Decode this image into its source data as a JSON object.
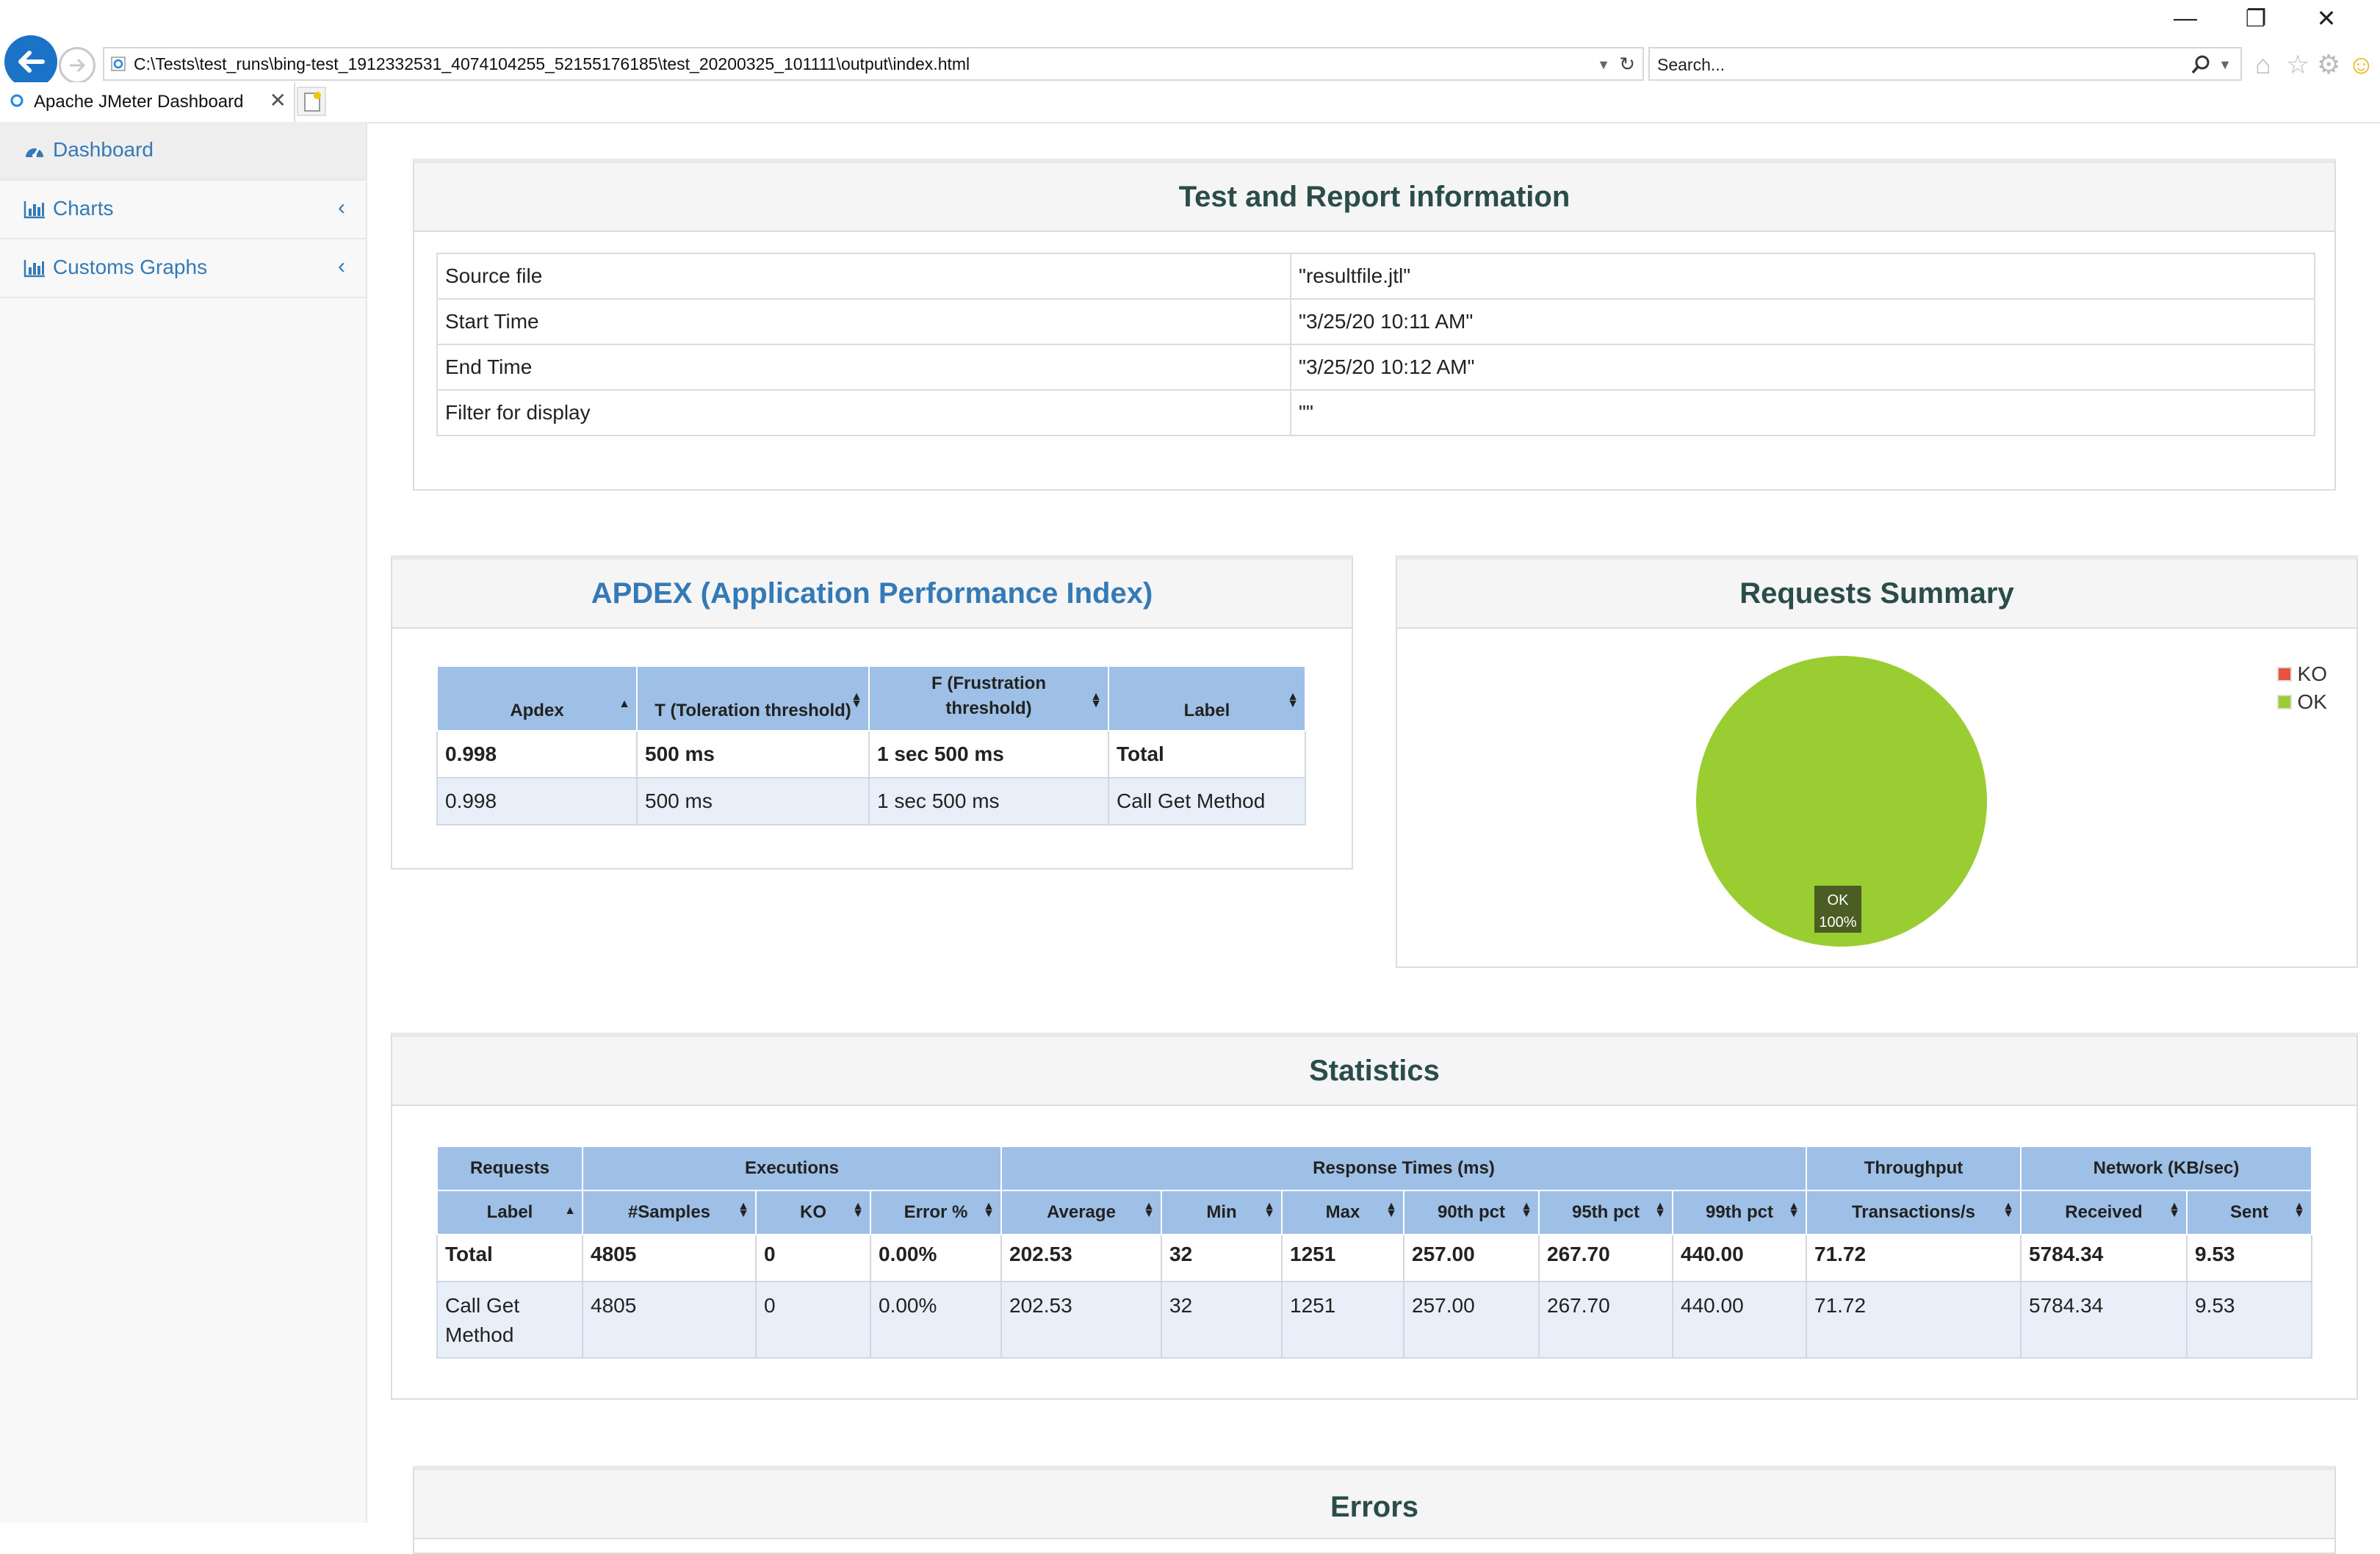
{
  "browser": {
    "url": "C:\\Tests\\test_runs\\bing-test_1912332531_4074104255_52155176185\\test_20200325_101111\\output\\index.html",
    "search_placeholder": "Search...",
    "tab_title": "Apache JMeter Dashboard"
  },
  "sidebar": {
    "items": [
      {
        "label": "Dashboard",
        "icon": "dashboard-icon"
      },
      {
        "label": "Charts",
        "icon": "bar-chart-icon"
      },
      {
        "label": "Customs Graphs",
        "icon": "bar-chart-icon"
      }
    ]
  },
  "test_info": {
    "title": "Test and Report information",
    "rows": [
      {
        "key": "Source file",
        "value": "\"resultfile.jtl\""
      },
      {
        "key": "Start Time",
        "value": "\"3/25/20 10:11 AM\""
      },
      {
        "key": "End Time",
        "value": "\"3/25/20 10:12 AM\""
      },
      {
        "key": "Filter for display",
        "value": "\"\""
      }
    ]
  },
  "apdex": {
    "title": "APDEX (Application Performance Index)",
    "headers": [
      "Apdex",
      "T (Toleration threshold)",
      "F (Frustration threshold)",
      "Label"
    ],
    "rows": [
      [
        "0.998",
        "500 ms",
        "1 sec 500 ms",
        "Total"
      ],
      [
        "0.998",
        "500 ms",
        "1 sec 500 ms",
        "Call Get Method"
      ]
    ]
  },
  "requests_summary": {
    "title": "Requests Summary",
    "legend": [
      {
        "label": "KO",
        "color": "#e8533b"
      },
      {
        "label": "OK",
        "color": "#9acd32"
      }
    ],
    "slice_label": "OK",
    "slice_percent": "100%",
    "ok_color": "#9acd32"
  },
  "statistics": {
    "title": "Statistics",
    "groups": [
      "Requests",
      "Executions",
      "Response Times (ms)",
      "Throughput",
      "Network (KB/sec)"
    ],
    "columns": [
      "Label",
      "#Samples",
      "KO",
      "Error %",
      "Average",
      "Min",
      "Max",
      "90th pct",
      "95th pct",
      "99th pct",
      "Transactions/s",
      "Received",
      "Sent"
    ],
    "rows": [
      [
        "Total",
        "4805",
        "0",
        "0.00%",
        "202.53",
        "32",
        "1251",
        "257.00",
        "267.70",
        "440.00",
        "71.72",
        "5784.34",
        "9.53"
      ],
      [
        "Call Get Method",
        "4805",
        "0",
        "0.00%",
        "202.53",
        "32",
        "1251",
        "257.00",
        "267.70",
        "440.00",
        "71.72",
        "5784.34",
        "9.53"
      ]
    ]
  },
  "errors": {
    "title": "Errors"
  }
}
